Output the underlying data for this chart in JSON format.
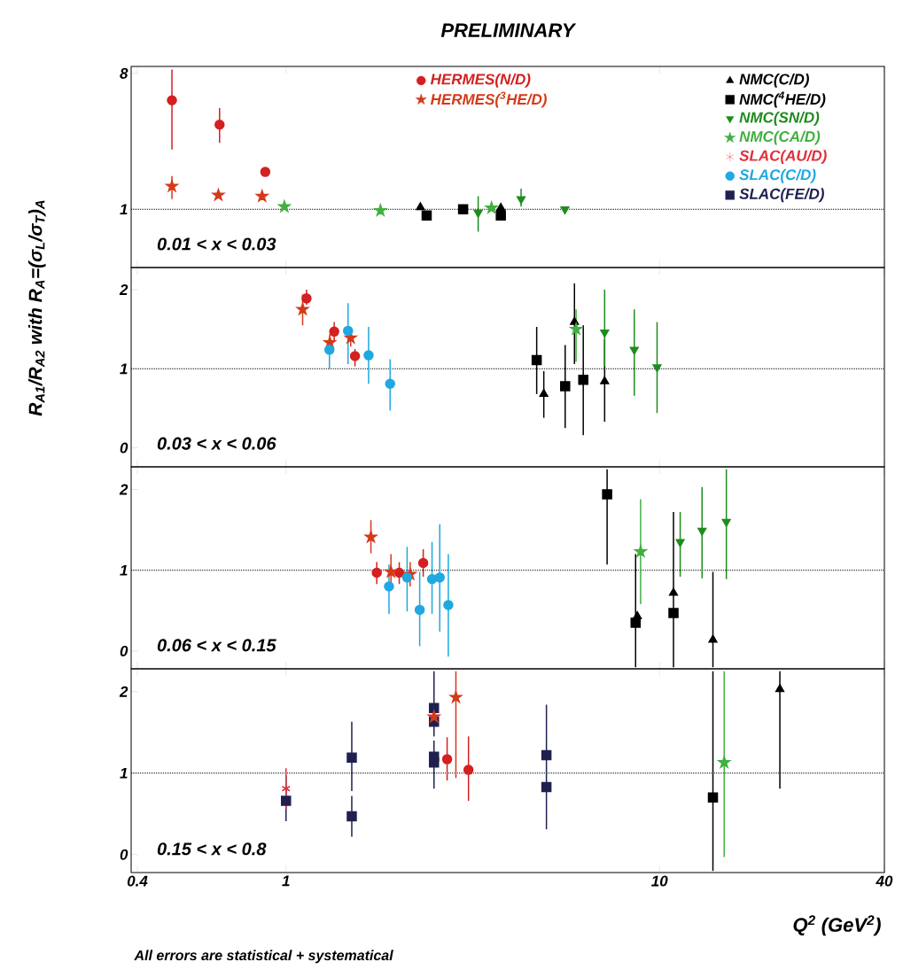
{
  "chart_data": [
    {
      "type": "scatter",
      "title": "PRELIMINARY",
      "ylabel": "R$_{A1}$/R$_{A2}$ with R$_{A}$=(σ$_{L}$/σ$_{T}$)$_{A}$",
      "log": "xy",
      "xlim": [
        0.385,
        40
      ],
      "xticks": [
        0.4,
        1,
        10,
        40
      ],
      "ylim": [
        0.41,
        8.9
      ],
      "yticks": [
        1,
        8
      ],
      "tick_labels": "y",
      "legend": "top right",
      "annotations": [
        "0.01 < x < 0.03"
      ],
      "ref_lines": [
        {
          "axis": "y",
          "value": 1,
          "line_style": "dotted"
        }
      ],
      "series": [
        {
          "name": "HERMES(N/D)",
          "color": "#d42020",
          "marker": "circle",
          "x": [
            0.495,
            0.664,
            0.88
          ],
          "values": [
            5.3,
            3.65,
            1.77
          ],
          "errors": [
            [
              2.5,
              8.5
            ],
            [
              2.76,
              4.7
            ],
            null
          ]
        },
        {
          "name": "HERMES($^{3}$HE/D)",
          "color": "#d43a1a",
          "marker": "star",
          "x": [
            0.495,
            0.659,
            0.863
          ],
          "values": [
            1.42,
            1.24,
            1.22
          ],
          "errors": [
            [
              1.17,
              1.66
            ],
            null,
            null
          ]
        },
        {
          "name": "NMC(C/D)",
          "color": "#000000",
          "marker": "triangle",
          "x": [
            2.29,
            3.76
          ],
          "values": [
            1.03,
            1.02
          ],
          "errors": [
            null,
            null
          ]
        },
        {
          "name": "NMC($^{4}$HE/D)",
          "color": "#000000",
          "marker": "square",
          "x": [
            2.38,
            2.98,
            3.76
          ],
          "values": [
            0.91,
            1.0,
            0.91
          ],
          "errors": [
            null,
            null,
            null
          ]
        },
        {
          "name": "NMC(SN/D)",
          "color": "#1e8c1e",
          "marker": "triangle down",
          "x": [
            3.27,
            4.26,
            5.58
          ],
          "values": [
            0.95,
            1.17,
            1.0
          ],
          "errors": [
            [
              0.71,
              1.22
            ],
            [
              1.04,
              1.37
            ],
            null
          ]
        },
        {
          "name": "NMC(CA/D)",
          "color": "#40b040",
          "marker": "star",
          "x": [
            0.99,
            1.79,
            3.55
          ],
          "values": [
            1.04,
            0.98,
            1.02
          ],
          "errors": [
            null,
            null,
            null
          ]
        },
        {
          "name": "SLAC(AU/D)",
          "color": "#e0303a",
          "marker": "cross"
        },
        {
          "name": "SLAC(C/D)",
          "color": "#20a8e0",
          "marker": "circle"
        },
        {
          "name": "SLAC(FE/D)",
          "color": "#202050",
          "marker": "square"
        }
      ]
    },
    {
      "type": "scatter",
      "log": "x",
      "xlim": [
        0.385,
        40
      ],
      "xticks": [
        0.4,
        1,
        10,
        40
      ],
      "ylim": [
        -0.24,
        2.28
      ],
      "yticks": [
        0,
        1,
        2
      ],
      "tick_labels": "y",
      "annotations": [
        "0.03 < x < 0.06"
      ],
      "ref_lines": [
        {
          "axis": "y",
          "value": 1,
          "line_style": "dotted"
        }
      ],
      "series": [
        {
          "color": "#d42020",
          "marker": "circle",
          "x": [
            1.135,
            1.346,
            1.53
          ],
          "values": [
            1.89,
            1.47,
            1.16
          ],
          "errors": [
            [
              1.81,
              2.0
            ],
            [
              1.34,
              1.59
            ],
            [
              1.03,
              1.25
            ]
          ]
        },
        {
          "color": "#d43a1a",
          "marker": "star",
          "x": [
            1.108,
            1.31,
            1.49
          ],
          "values": [
            1.75,
            1.33,
            1.39
          ],
          "errors": [
            [
              1.55,
              1.94
            ],
            [
              1.19,
              1.44
            ],
            [
              1.28,
              1.5
            ]
          ]
        },
        {
          "color": "#20a8e0",
          "marker": "circle",
          "x": [
            1.307,
            1.466,
            1.664,
            1.9
          ],
          "values": [
            1.24,
            1.48,
            1.17,
            0.81
          ],
          "errors": [
            [
              1.0,
              1.37
            ],
            [
              1.06,
              1.83
            ],
            [
              0.81,
              1.53
            ],
            [
              0.47,
              1.12
            ]
          ]
        },
        {
          "color": "#000000",
          "marker": "square",
          "x": [
            4.69,
            5.59,
            6.25
          ],
          "values": [
            1.11,
            0.78,
            0.86
          ],
          "errors": [
            [
              0.68,
              1.53
            ],
            [
              0.25,
              1.3
            ],
            [
              0.16,
              1.55
            ]
          ]
        },
        {
          "color": "#000000",
          "marker": "triangle",
          "x": [
            4.9,
            5.92,
            7.13
          ],
          "values": [
            0.68,
            1.59,
            0.84
          ],
          "errors": [
            [
              0.38,
              0.97
            ],
            [
              1.06,
              2.08
            ],
            [
              0.33,
              1.37
            ]
          ]
        },
        {
          "color": "#1e8c1e",
          "marker": "triangle down",
          "x": [
            7.13,
            8.56,
            9.85
          ],
          "values": [
            1.46,
            1.24,
            1.02
          ],
          "errors": [
            [
              1.03,
              2.0
            ],
            [
              0.66,
              1.75
            ],
            [
              0.44,
              1.59
            ]
          ]
        },
        {
          "color": "#40b040",
          "marker": "star",
          "x": [
            5.98
          ],
          "values": [
            1.5
          ],
          "errors": [
            [
              1.09,
              1.75
            ]
          ]
        }
      ]
    },
    {
      "type": "scatter",
      "log": "x",
      "xlim": [
        0.385,
        40
      ],
      "xticks": [
        0.4,
        1,
        10,
        40
      ],
      "ylim": [
        -0.22,
        2.28
      ],
      "yticks": [
        0,
        1,
        2
      ],
      "tick_labels": "y",
      "annotations": [
        "0.06 < x < 0.15"
      ],
      "ref_lines": [
        {
          "axis": "y",
          "value": 1,
          "line_style": "dotted"
        }
      ],
      "series": [
        {
          "color": "#d42020",
          "marker": "circle",
          "x": [
            1.75,
            2.01,
            2.33
          ],
          "values": [
            0.97,
            0.97,
            1.09
          ],
          "errors": [
            [
              0.83,
              1.1
            ],
            [
              0.83,
              1.1
            ],
            [
              0.92,
              1.26
            ]
          ]
        },
        {
          "color": "#d43a1a",
          "marker": "star",
          "x": [
            1.688,
            1.91,
            2.15
          ],
          "values": [
            1.41,
            0.98,
            0.95
          ],
          "errors": [
            [
              1.21,
              1.62
            ],
            [
              0.8,
              1.2
            ],
            [
              0.8,
              1.1
            ]
          ]
        },
        {
          "color": "#20a8e0",
          "marker": "circle",
          "x": [
            1.887,
            2.11,
            2.28,
            2.46,
            2.58,
            2.72
          ],
          "values": [
            0.8,
            0.91,
            0.51,
            0.89,
            0.91,
            0.57
          ],
          "errors": [
            [
              0.46,
              1.07
            ],
            [
              0.49,
              1.29
            ],
            [
              0.06,
              0.98
            ],
            [
              0.46,
              1.35
            ],
            [
              0.24,
              1.57
            ],
            [
              -0.07,
              1.2
            ]
          ]
        },
        {
          "color": "#000000",
          "marker": "square",
          "x": [
            7.24,
            8.63,
            10.9
          ],
          "values": [
            1.94,
            0.35,
            0.47
          ],
          "errors": [
            [
              1.07,
              2.25
            ],
            [
              -0.2,
              1.2
            ],
            [
              -0.2,
              1.72
            ]
          ]
        },
        {
          "color": "#000000",
          "marker": "triangle",
          "x": [
            8.72,
            10.9,
            13.9
          ],
          "values": [
            0.43,
            0.72,
            0.14
          ],
          "errors": [
            null,
            null,
            [
              -0.2,
              0.98
            ]
          ]
        },
        {
          "color": "#40b040",
          "marker": "star",
          "x": [
            8.9
          ],
          "values": [
            1.23
          ],
          "errors": [
            [
              0.58,
              1.88
            ]
          ]
        },
        {
          "color": "#1e8c1e",
          "marker": "triangle down",
          "x": [
            11.36,
            13.0,
            15.1
          ],
          "values": [
            1.35,
            1.49,
            1.6
          ],
          "errors": [
            [
              0.92,
              1.72
            ],
            [
              0.9,
              2.03
            ],
            [
              0.89,
              2.25
            ]
          ]
        }
      ]
    },
    {
      "type": "scatter",
      "xlabel": "Q$^{2}$ (GeV$^{2}$)",
      "log": "x",
      "xlim": [
        0.385,
        40
      ],
      "xticks": [
        0.4,
        1,
        10,
        40
      ],
      "ylim": [
        -0.22,
        2.28
      ],
      "yticks": [
        0,
        1,
        2
      ],
      "annotations": [
        "0.15 < x < 0.8",
        "All errors are statistical + systematical"
      ],
      "ref_lines": [
        {
          "axis": "y",
          "value": 1,
          "line_style": "dotted"
        }
      ],
      "series": [
        {
          "color": "#202050",
          "marker": "square",
          "x": [
            1.0,
            1.5,
            1.5,
            2.49,
            2.49,
            2.49,
            2.49,
            4.98,
            4.98
          ],
          "values": [
            0.66,
            1.19,
            0.47,
            1.8,
            1.63,
            1.2,
            1.13,
            1.22,
            0.83
          ],
          "errors": [
            [
              0.41,
              0.97
            ],
            [
              0.78,
              1.63
            ],
            [
              0.22,
              0.72
            ],
            [
              1.45,
              2.25
            ],
            null,
            null,
            [
              0.81,
              1.4
            ],
            [
              0.31,
              1.84
            ],
            null
          ]
        },
        {
          "color": "#e0303a",
          "marker": "cross",
          "x": [
            1.0
          ],
          "values": [
            0.81
          ],
          "errors": [
            [
              0.56,
              1.06
            ]
          ]
        },
        {
          "color": "#d43a1a",
          "marker": "star",
          "x": [
            2.49,
            2.85
          ],
          "values": [
            1.69,
            1.93
          ],
          "errors": [
            null,
            [
              0.94,
              2.25
            ]
          ]
        },
        {
          "color": "#d42020",
          "marker": "circle",
          "x": [
            2.7,
            3.08
          ],
          "values": [
            1.17,
            1.04
          ],
          "errors": [
            [
              0.91,
              1.44
            ],
            [
              0.66,
              1.45
            ]
          ]
        },
        {
          "color": "#000000",
          "marker": "square",
          "x": [
            13.9
          ],
          "values": [
            0.7
          ],
          "errors": [
            [
              -0.2,
              2.25
            ]
          ]
        },
        {
          "color": "#40b040",
          "marker": "star",
          "x": [
            14.9
          ],
          "values": [
            1.13
          ],
          "errors": [
            [
              -0.03,
              2.25
            ]
          ]
        },
        {
          "color": "#000000",
          "marker": "triangle",
          "x": [
            21.0
          ],
          "values": [
            2.03
          ],
          "errors": [
            [
              0.81,
              2.25
            ]
          ]
        }
      ]
    }
  ]
}
